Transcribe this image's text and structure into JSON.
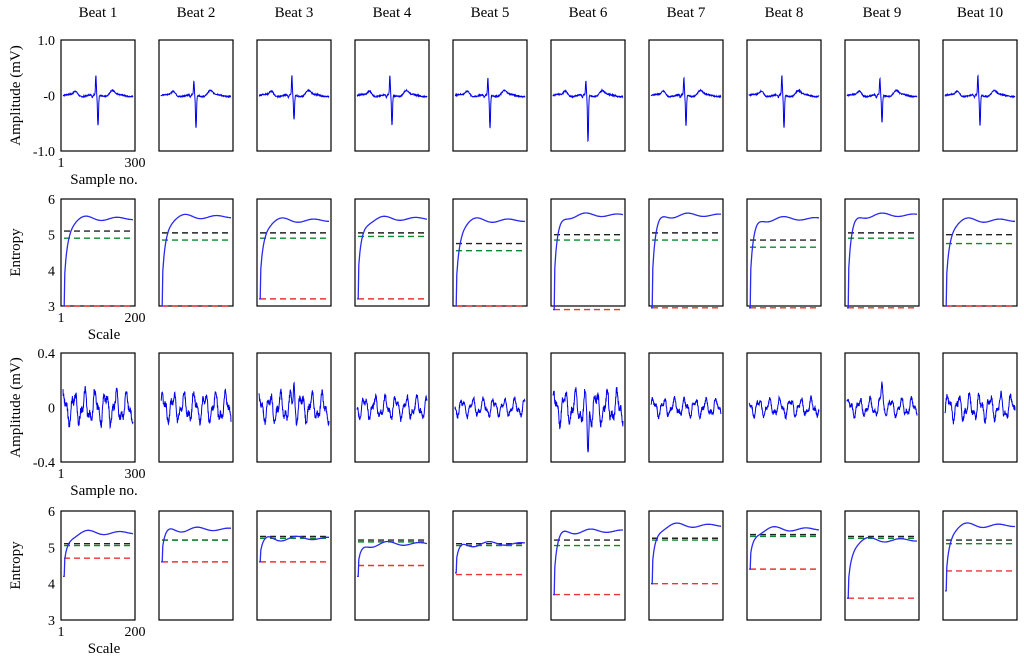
{
  "beat_labels": [
    "Beat 1",
    "Beat 2",
    "Beat 3",
    "Beat 4",
    "Beat 5",
    "Beat 6",
    "Beat 7",
    "Beat 8",
    "Beat 9",
    "Beat 10"
  ],
  "colors": {
    "trace": "#0000ee",
    "entropy_curve": "#2a2af0",
    "black_line": "#222222",
    "green_line": "#0a8a2a",
    "red_line": "#ee3333"
  },
  "chart_data": [
    {
      "type": "line",
      "name": "row1-ecg",
      "ylabel": "Amplitude (mV)",
      "xlabel": "Sample no.",
      "xlim": [
        1,
        300
      ],
      "ylim": [
        -1.0,
        1.0
      ],
      "xticks": [
        "1",
        "300"
      ],
      "yticks": [
        {
          "v": 1.0,
          "label": "1.0"
        },
        {
          "v": 0,
          "label": "-0"
        },
        {
          "v": -1.0,
          "label": "-1.0"
        }
      ],
      "beats": [
        {
          "r_peak": 0.35,
          "s_trough": -0.55
        },
        {
          "r_peak": 0.25,
          "s_trough": -0.6
        },
        {
          "r_peak": 0.35,
          "s_trough": -0.45
        },
        {
          "r_peak": 0.35,
          "s_trough": -0.55
        },
        {
          "r_peak": 0.3,
          "s_trough": -0.6
        },
        {
          "r_peak": 0.25,
          "s_trough": -0.85
        },
        {
          "r_peak": 0.3,
          "s_trough": -0.55
        },
        {
          "r_peak": 0.35,
          "s_trough": -0.6
        },
        {
          "r_peak": 0.3,
          "s_trough": -0.5
        },
        {
          "r_peak": 0.35,
          "s_trough": -0.55
        }
      ]
    },
    {
      "type": "line",
      "name": "row2-entropy",
      "ylabel": "Entropy",
      "xlabel": "Scale",
      "xlim": [
        1,
        200
      ],
      "ylim": [
        3,
        6
      ],
      "xticks": [
        "1",
        "200"
      ],
      "yticks": [
        {
          "v": 6,
          "label": "6"
        },
        {
          "v": 5,
          "label": "5"
        },
        {
          "v": 4,
          "label": "4"
        },
        {
          "v": 3,
          "label": "3"
        }
      ],
      "beats": [
        {
          "start": 3.0,
          "end": 5.45,
          "black": 5.1,
          "green": 4.9,
          "red": 3.0
        },
        {
          "start": 3.0,
          "end": 5.5,
          "black": 5.05,
          "green": 4.85,
          "red": 3.0
        },
        {
          "start": 3.2,
          "end": 5.4,
          "black": 5.05,
          "green": 4.9,
          "red": 3.2
        },
        {
          "start": 3.2,
          "end": 5.45,
          "black": 5.05,
          "green": 4.95,
          "red": 3.2
        },
        {
          "start": 3.0,
          "end": 5.4,
          "black": 4.75,
          "green": 4.55,
          "red": 3.0
        },
        {
          "start": 2.9,
          "end": 5.55,
          "black": 5.0,
          "green": 4.85,
          "red": 2.9
        },
        {
          "start": 2.95,
          "end": 5.55,
          "black": 5.05,
          "green": 4.85,
          "red": 2.95
        },
        {
          "start": 2.95,
          "end": 5.45,
          "black": 4.85,
          "green": 4.65,
          "red": 2.95
        },
        {
          "start": 2.95,
          "end": 5.55,
          "black": 5.05,
          "green": 4.9,
          "red": 2.95
        },
        {
          "start": 3.0,
          "end": 5.4,
          "black": 5.0,
          "green": 4.75,
          "red": 3.0
        }
      ]
    },
    {
      "type": "line",
      "name": "row3-noise",
      "ylabel": "Amplitude (mV)",
      "xlabel": "Sample no.",
      "xlim": [
        1,
        300
      ],
      "ylim": [
        -0.4,
        0.4
      ],
      "xticks": [
        "1",
        "300"
      ],
      "yticks": [
        {
          "v": 0.4,
          "label": "0.4"
        },
        {
          "v": 0,
          "label": "0"
        },
        {
          "v": -0.4,
          "label": "-0.4"
        }
      ],
      "beats": [
        {
          "amp": 0.09,
          "spike": 0.0
        },
        {
          "amp": 0.08,
          "spike": 0.0
        },
        {
          "amp": 0.08,
          "spike": 0.16
        },
        {
          "amp": 0.06,
          "spike": 0.0
        },
        {
          "amp": 0.05,
          "spike": 0.0
        },
        {
          "amp": 0.09,
          "spike": -0.35
        },
        {
          "amp": 0.05,
          "spike": 0.0
        },
        {
          "amp": 0.05,
          "spike": 0.0
        },
        {
          "amp": 0.05,
          "spike": 0.18
        },
        {
          "amp": 0.07,
          "spike": 0.0
        }
      ]
    },
    {
      "type": "line",
      "name": "row4-entropy",
      "ylabel": "Entropy",
      "xlabel": "Scale",
      "xlim": [
        1,
        200
      ],
      "ylim": [
        3,
        6
      ],
      "xticks": [
        "1",
        "200"
      ],
      "yticks": [
        {
          "v": 6,
          "label": "6"
        },
        {
          "v": 5,
          "label": "5"
        },
        {
          "v": 4,
          "label": "4"
        },
        {
          "v": 3,
          "label": "3"
        }
      ],
      "beats": [
        {
          "start": 4.2,
          "end": 5.4,
          "black": 5.1,
          "green": 5.05,
          "red": 4.7
        },
        {
          "start": 4.6,
          "end": 5.5,
          "black": 5.2,
          "green": 5.2,
          "red": 4.6
        },
        {
          "start": 4.6,
          "end": 5.25,
          "black": 5.3,
          "green": 5.25,
          "red": 4.6
        },
        {
          "start": 4.2,
          "end": 5.1,
          "black": 5.2,
          "green": 5.15,
          "red": 4.5
        },
        {
          "start": 4.3,
          "end": 5.1,
          "black": 5.1,
          "green": 5.05,
          "red": 4.25
        },
        {
          "start": 3.7,
          "end": 5.45,
          "black": 5.2,
          "green": 5.05,
          "red": 3.7
        },
        {
          "start": 4.0,
          "end": 5.6,
          "black": 5.25,
          "green": 5.2,
          "red": 4.0
        },
        {
          "start": 4.4,
          "end": 5.5,
          "black": 5.35,
          "green": 5.3,
          "red": 4.4
        },
        {
          "start": 3.6,
          "end": 5.2,
          "black": 5.3,
          "green": 5.25,
          "red": 3.6
        },
        {
          "start": 3.8,
          "end": 5.6,
          "black": 5.2,
          "green": 5.1,
          "red": 4.35
        }
      ]
    }
  ]
}
